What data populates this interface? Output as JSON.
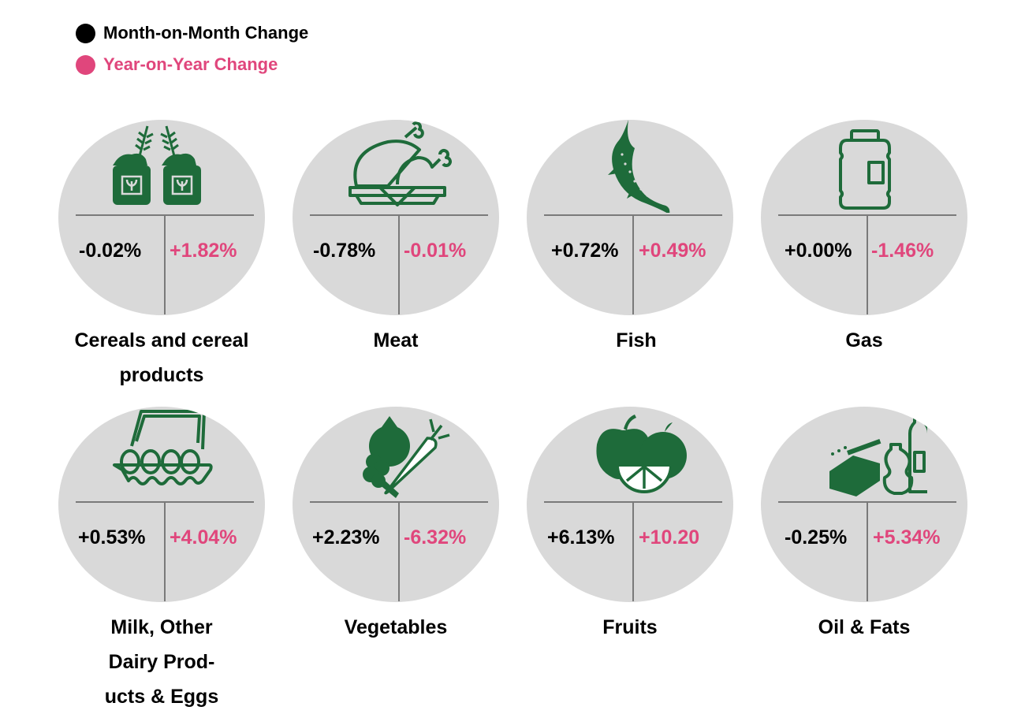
{
  "legend": {
    "mom": {
      "label": "Month-on-Month Change",
      "color": "#000000"
    },
    "yoy": {
      "label": "Year-on-Year Change",
      "color": "#e0467c"
    }
  },
  "colors": {
    "icon": "#1e6b3a",
    "circle": "#d9d9d9"
  },
  "items": [
    {
      "icon": "cereal-sacks-icon",
      "mom": "-0.02%",
      "yoy": "+1.82%",
      "label": "Cereals and cereal products"
    },
    {
      "icon": "roast-chicken-icon",
      "mom": "-0.78%",
      "yoy": "-0.01%",
      "label": "Meat"
    },
    {
      "icon": "fish-icon",
      "mom": "+0.72%",
      "yoy": "+0.49%",
      "label": "Fish"
    },
    {
      "icon": "gas-cylinder-icon",
      "mom": "+0.00%",
      "yoy": "-1.46%",
      "label": "Gas"
    },
    {
      "icon": "egg-carton-icon",
      "mom": "+0.53%",
      "yoy": "+4.04%",
      "label": "Milk, Other Dairy Prod- ucts & Eggs"
    },
    {
      "icon": "vegetables-icon",
      "mom": "+2.23%",
      "yoy": "-6.32%",
      "label": "Vegetables"
    },
    {
      "icon": "fruits-icon",
      "mom": "+6.13%",
      "yoy": "+10.20",
      "label": "Fruits"
    },
    {
      "icon": "oil-fats-icon",
      "mom": "-0.25%",
      "yoy": "+5.34%",
      "label": "Oil & Fats"
    }
  ]
}
